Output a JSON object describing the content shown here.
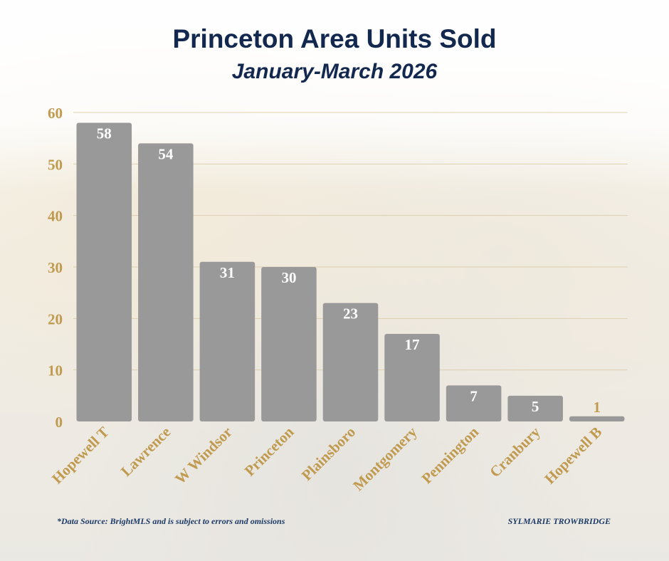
{
  "header": {
    "title": "Princeton Area Units Sold",
    "subtitle": "January-March 2026"
  },
  "footer": {
    "source": "*Data Source: BrightMLS and is subject to errors and omissions",
    "credit": "SYLMARIE TROWBRIDGE"
  },
  "colors": {
    "bar": "#999999",
    "axis_labels": "#c09a4e",
    "title": "#13284e",
    "value_labels_inside": "#ffffff",
    "value_labels_outside": "#c09a4e"
  },
  "chart_data": {
    "type": "bar",
    "title": "Princeton Area Units Sold",
    "subtitle": "January-March 2026",
    "categories": [
      "Hopewell T",
      "Lawrence",
      "W Windsor",
      "Princeton",
      "Plainsboro",
      "Montgomery",
      "Pennington",
      "Cranbury",
      "Hopewell B"
    ],
    "values": [
      58,
      54,
      31,
      30,
      23,
      17,
      7,
      5,
      1
    ],
    "ylim": [
      0,
      60
    ],
    "yticks": [
      0,
      10,
      20,
      30,
      40,
      50,
      60
    ],
    "xlabel": "",
    "ylabel": "",
    "grid": true,
    "legend": "none"
  }
}
